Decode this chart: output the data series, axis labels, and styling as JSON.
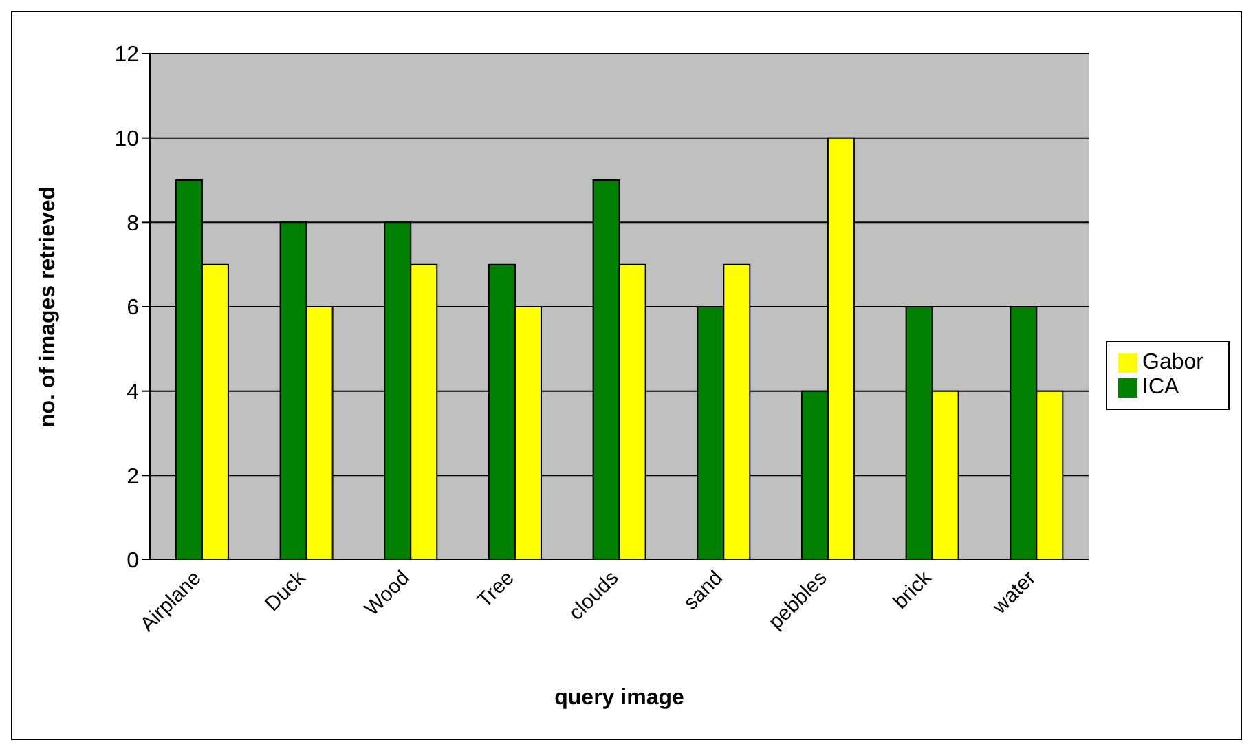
{
  "chart_data": {
    "type": "bar",
    "xlabel": "query image",
    "ylabel": "no. of images retrieved",
    "categories": [
      "Airplane",
      "Duck",
      "Wood",
      "Tree",
      "clouds",
      "sand",
      "pebbles",
      "brick",
      "water"
    ],
    "series": [
      {
        "name": "ICA",
        "color": "#008000",
        "values": [
          9,
          8,
          8,
          7,
          9,
          6,
          4,
          6,
          6
        ]
      },
      {
        "name": "Gabor",
        "color": "#ffff00",
        "values": [
          7,
          6,
          7,
          6,
          7,
          7,
          10,
          4,
          4
        ]
      }
    ],
    "ylim": [
      0,
      12
    ],
    "yticks": [
      0,
      2,
      4,
      6,
      8,
      10,
      12
    ],
    "grid": "y",
    "legend": "right"
  }
}
